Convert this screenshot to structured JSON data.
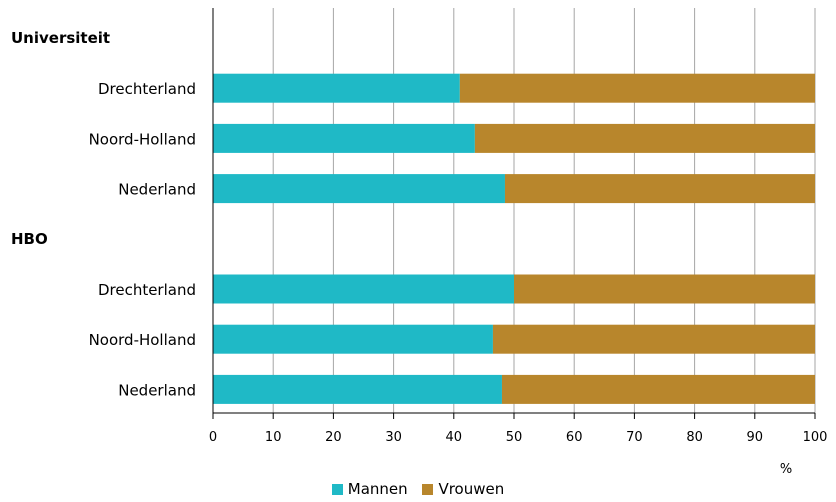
{
  "chart_data": {
    "type": "bar",
    "orientation": "horizontal",
    "stacked": true,
    "xlim": [
      0,
      100
    ],
    "xticks": [
      0,
      10,
      20,
      30,
      40,
      50,
      60,
      70,
      80,
      90,
      100
    ],
    "xunit": "%",
    "grid": true,
    "legend_position": "bottom-center",
    "groups": [
      {
        "label": "Universiteit",
        "categories": [
          "Drechterland",
          "Noord-Holland",
          "Nederland"
        ],
        "series": [
          {
            "name": "Mannen",
            "values": [
              41,
              43.5,
              48.5
            ]
          },
          {
            "name": "Vrouwen",
            "values": [
              59,
              56.5,
              51.5
            ]
          }
        ]
      },
      {
        "label": "HBO",
        "categories": [
          "Drechterland",
          "Noord-Holland",
          "Nederland"
        ],
        "series": [
          {
            "name": "Mannen",
            "values": [
              50,
              46.5,
              48
            ]
          },
          {
            "name": "Vrouwen",
            "values": [
              50,
              53.5,
              52
            ]
          }
        ]
      }
    ],
    "legend": [
      {
        "name": "Mannen",
        "color": "#1fb9c6"
      },
      {
        "name": "Vrouwen",
        "color": "#b8862c"
      }
    ]
  }
}
